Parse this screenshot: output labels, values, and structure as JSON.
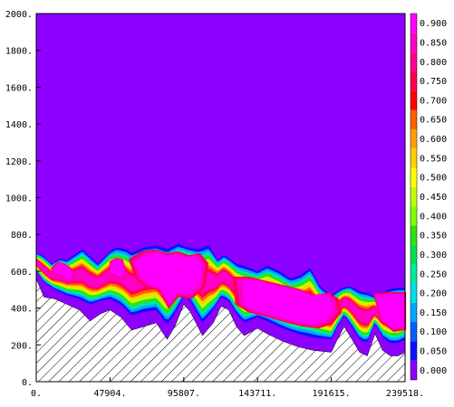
{
  "chart_data": {
    "type": "heatmap",
    "title": "",
    "xlabel": "",
    "ylabel": "",
    "xlim": [
      0,
      239518
    ],
    "ylim": [
      0,
      2000
    ],
    "x_ticks": [
      {
        "value": 0,
        "label": "0."
      },
      {
        "value": 47904,
        "label": "47904."
      },
      {
        "value": 95807,
        "label": "95807."
      },
      {
        "value": 143711,
        "label": "143711."
      },
      {
        "value": 191615,
        "label": "191615."
      },
      {
        "value": 239518,
        "label": "239518."
      }
    ],
    "y_ticks": [
      {
        "value": 0,
        "label": "0."
      },
      {
        "value": 200,
        "label": "200."
      },
      {
        "value": 400,
        "label": "400."
      },
      {
        "value": 600,
        "label": "600."
      },
      {
        "value": 800,
        "label": "800."
      },
      {
        "value": 1000,
        "label": "1000."
      },
      {
        "value": 1200,
        "label": "1200."
      },
      {
        "value": 1400,
        "label": "1400."
      },
      {
        "value": 1600,
        "label": "1600."
      },
      {
        "value": 1800,
        "label": "1800."
      },
      {
        "value": 2000,
        "label": "2000."
      }
    ],
    "background_value": 0.0,
    "colorbar": {
      "labels": [
        "0.000",
        "0.050",
        "0.100",
        "0.150",
        "0.200",
        "0.250",
        "0.300",
        "0.350",
        "0.400",
        "0.450",
        "0.500",
        "0.550",
        "0.600",
        "0.650",
        "0.700",
        "0.750",
        "0.800",
        "0.850",
        "0.900"
      ],
      "colors": [
        "#8c00ff",
        "#1010ff",
        "#0060ff",
        "#00a8ff",
        "#00e0e0",
        "#00e8a0",
        "#00e050",
        "#30e010",
        "#80ff00",
        "#c0ff00",
        "#ffff00",
        "#ffd000",
        "#ffa000",
        "#ff6000",
        "#ff0000",
        "#ff0050",
        "#ff0090",
        "#ff00c8",
        "#ff00ff"
      ]
    },
    "terrain_profile": {
      "x": [
        0,
        5000,
        12000,
        20000,
        28000,
        35000,
        42000,
        47904,
        55000,
        62000,
        70000,
        78000,
        85000,
        90000,
        95807,
        100000,
        108000,
        115000,
        120000,
        125000,
        130000,
        135000,
        143711,
        150000,
        160000,
        170000,
        180000,
        191615,
        195000,
        200000,
        205000,
        210000,
        215000,
        220000,
        225000,
        230000,
        235000,
        239518
      ],
      "y": [
        560,
        460,
        450,
        420,
        390,
        330,
        370,
        390,
        350,
        280,
        300,
        320,
        230,
        300,
        420,
        380,
        250,
        320,
        410,
        390,
        300,
        250,
        290,
        260,
        220,
        190,
        170,
        160,
        220,
        300,
        230,
        160,
        140,
        260,
        170,
        140,
        140,
        160
      ]
    },
    "cloud_top": {
      "x": [
        0,
        5000,
        10000,
        15000,
        20000,
        25000,
        30000,
        35000,
        40000,
        47904,
        52000,
        58000,
        62000,
        70000,
        78000,
        85000,
        92000,
        98000,
        105000,
        112000,
        118000,
        122000,
        130000,
        138000,
        143711,
        150000,
        158000,
        165000,
        172000,
        178000,
        184000,
        191615,
        197000,
        203000,
        210000,
        216000,
        222000,
        228000,
        234000,
        239518
      ],
      "y": [
        700,
        680,
        640,
        670,
        660,
        690,
        720,
        680,
        640,
        710,
        730,
        720,
        700,
        730,
        740,
        720,
        750,
        730,
        720,
        740,
        660,
        690,
        640,
        620,
        600,
        630,
        600,
        560,
        580,
        620,
        520,
        470,
        500,
        520,
        490,
        480,
        450,
        500,
        510,
        510
      ]
    },
    "cloud_base": {
      "x": [
        0,
        5000,
        12000,
        20000,
        28000,
        35000,
        42000,
        47904,
        55000,
        62000,
        70000,
        78000,
        85000,
        90000,
        95807,
        100000,
        108000,
        115000,
        120000,
        125000,
        130000,
        135000,
        143711,
        150000,
        160000,
        170000,
        180000,
        191615,
        195000,
        200000,
        205000,
        210000,
        215000,
        220000,
        225000,
        230000,
        235000,
        239518
      ],
      "y": [
        600,
        540,
        500,
        470,
        450,
        420,
        440,
        450,
        420,
        360,
        380,
        390,
        310,
        370,
        460,
        440,
        320,
        390,
        460,
        440,
        370,
        320,
        350,
        330,
        290,
        260,
        240,
        230,
        290,
        360,
        300,
        230,
        210,
        320,
        240,
        210,
        210,
        230
      ]
    },
    "cores": [
      {
        "x": [
          10000,
          14000,
          18000,
          22000,
          25000,
          22000,
          18000,
          14000
        ],
        "y": [
          610,
          650,
          640,
          620,
          580,
          540,
          560,
          580
        ],
        "value": 0.9
      },
      {
        "x": [
          48000,
          52000,
          56000,
          58000,
          56000,
          52000,
          48000
        ],
        "y": [
          650,
          670,
          660,
          610,
          560,
          570,
          590
        ],
        "value": 0.9
      },
      {
        "x": [
          62000,
          70000,
          78000,
          85000,
          92000,
          98000,
          105000,
          110000,
          108000,
          100000,
          92000,
          86000,
          80000,
          72000,
          66000
        ],
        "y": [
          660,
          700,
          710,
          690,
          700,
          680,
          690,
          640,
          520,
          460,
          470,
          410,
          500,
          520,
          560
        ],
        "value": 0.92
      },
      {
        "x": [
          130000,
          140000,
          150000,
          160000,
          170000,
          180000,
          188000,
          194000,
          196000,
          190000,
          182000,
          172000,
          162000,
          150000,
          140000,
          132000
        ],
        "y": [
          560,
          560,
          540,
          520,
          500,
          470,
          480,
          450,
          380,
          320,
          300,
          310,
          330,
          360,
          380,
          420
        ],
        "value": 0.92
      },
      {
        "x": [
          220000,
          228000,
          236000,
          239518,
          239518,
          232000,
          224000
        ],
        "y": [
          470,
          480,
          480,
          480,
          290,
          280,
          330
        ],
        "value": 0.9
      }
    ]
  }
}
